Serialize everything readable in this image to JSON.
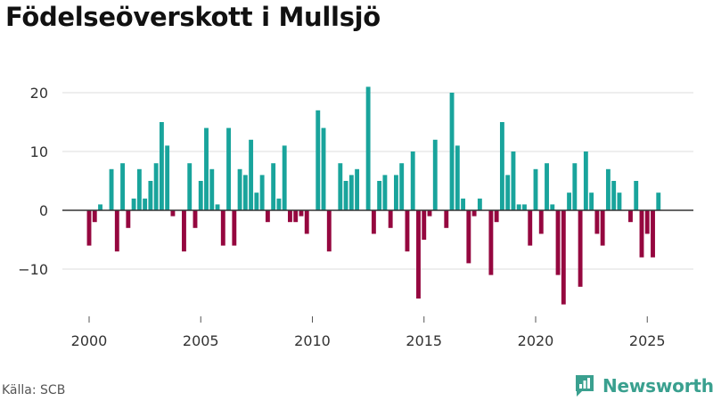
{
  "title": "Födelseöverskott i Mullsjö",
  "source": "Källa: SCB",
  "brand": {
    "name": "Newsworthy",
    "logo": "bar-chart-logo-icon"
  },
  "colors": {
    "positive": "#19a49c",
    "negative": "#95073f",
    "grid": "#dddddd",
    "zero_line": "#333333"
  },
  "chart_data": {
    "type": "bar",
    "title": "Födelseöverskott i Mullsjö",
    "xlabel": "",
    "ylabel": "",
    "xlim": [
      1999.5,
      2026.5
    ],
    "ylim": [
      -16,
      22
    ],
    "y_ticks": [
      20,
      10,
      0,
      -10
    ],
    "y_tick_labels": [
      "20",
      "10",
      "0",
      "−10"
    ],
    "x_ticks": [
      2000,
      2005,
      2010,
      2015,
      2020,
      2025
    ],
    "x_tick_labels": [
      "2000",
      "2005",
      "2010",
      "2015",
      "2020",
      "2025"
    ],
    "grid": true,
    "legend": "none",
    "periods_per_year": 4,
    "start": "2000 Q1",
    "series": [
      {
        "values": [
          -6,
          -2,
          1,
          0,
          7,
          -7,
          8,
          -3,
          2,
          7,
          2,
          5,
          8,
          15,
          11,
          -1,
          0,
          -7,
          8,
          -3,
          5,
          14,
          7,
          1,
          -6,
          14,
          -6,
          7,
          6,
          12,
          3,
          6,
          -2,
          8,
          2,
          11,
          -2,
          -2,
          -1,
          -4,
          0,
          17,
          14,
          -7,
          0,
          8,
          5,
          6,
          7,
          0,
          21,
          -4,
          5,
          6,
          -3,
          6,
          8,
          -7,
          10,
          -15,
          -5,
          -1,
          12,
          0,
          -3,
          20,
          11,
          2,
          -9,
          -1,
          2,
          0,
          -11,
          -2,
          15,
          6,
          10,
          1,
          1,
          -6,
          7,
          -4,
          8,
          1,
          -11,
          -16,
          3,
          8,
          -13,
          10,
          3,
          -4,
          -6,
          7,
          5,
          3,
          0,
          -2,
          5,
          -8,
          -4,
          -8,
          3
        ]
      }
    ]
  }
}
